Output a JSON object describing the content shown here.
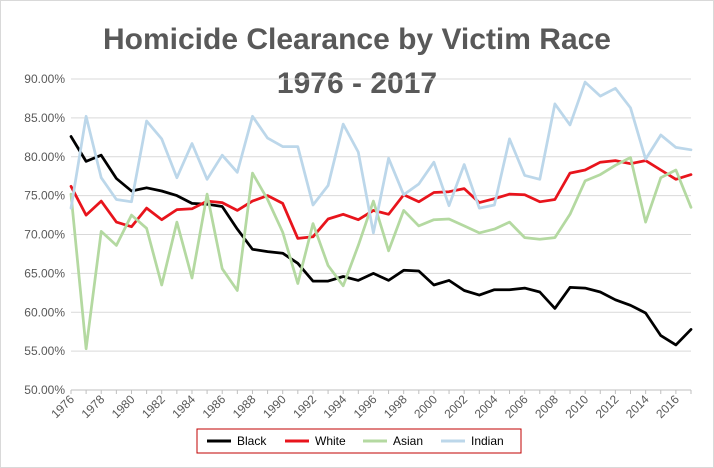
{
  "chart_data": {
    "type": "line",
    "title_line1": "Homicide Clearance by Victim Race",
    "title_line2": "1976 - 2017",
    "xlabel": "",
    "ylabel": "",
    "ylim": [
      0.5,
      0.9
    ],
    "y_ticks": [
      0.5,
      0.55,
      0.6,
      0.65,
      0.7,
      0.75,
      0.8,
      0.85,
      0.9
    ],
    "y_tick_labels": [
      "50.00%",
      "55.00%",
      "60.00%",
      "65.00%",
      "70.00%",
      "75.00%",
      "80.00%",
      "85.00%",
      "90.00%"
    ],
    "x_tick_labels": [
      "1976",
      "1978",
      "1980",
      "1982",
      "1984",
      "1986",
      "1988",
      "1990",
      "1992",
      "1994",
      "1996",
      "1998",
      "2000",
      "2002",
      "2004",
      "2006",
      "2008",
      "2010",
      "2012",
      "2014",
      "2016"
    ],
    "grid": true,
    "legend_position": "bottom",
    "x": [
      1976,
      1977,
      1978,
      1979,
      1980,
      1981,
      1982,
      1983,
      1984,
      1985,
      1986,
      1987,
      1988,
      1989,
      1990,
      1991,
      1992,
      1993,
      1994,
      1995,
      1996,
      1997,
      1998,
      1999,
      2000,
      2001,
      2002,
      2003,
      2004,
      2005,
      2006,
      2007,
      2008,
      2009,
      2010,
      2011,
      2012,
      2013,
      2014,
      2015,
      2016,
      2017
    ],
    "series": [
      {
        "name": "Black",
        "color": "#000000",
        "values": [
          0.826,
          0.794,
          0.802,
          0.772,
          0.756,
          0.76,
          0.756,
          0.75,
          0.74,
          0.739,
          0.736,
          0.707,
          0.681,
          0.678,
          0.676,
          0.663,
          0.64,
          0.64,
          0.646,
          0.641,
          0.65,
          0.641,
          0.654,
          0.653,
          0.635,
          0.641,
          0.628,
          0.622,
          0.629,
          0.629,
          0.631,
          0.626,
          0.605,
          0.632,
          0.631,
          0.626,
          0.616,
          0.609,
          0.599,
          0.57,
          0.558,
          0.578
        ]
      },
      {
        "name": "White",
        "color": "#e8141c",
        "values": [
          0.762,
          0.725,
          0.743,
          0.716,
          0.71,
          0.734,
          0.719,
          0.732,
          0.733,
          0.743,
          0.741,
          0.731,
          0.743,
          0.75,
          0.74,
          0.695,
          0.697,
          0.72,
          0.726,
          0.719,
          0.731,
          0.726,
          0.751,
          0.742,
          0.754,
          0.755,
          0.759,
          0.741,
          0.746,
          0.752,
          0.751,
          0.742,
          0.745,
          0.779,
          0.783,
          0.793,
          0.795,
          0.791,
          0.795,
          0.783,
          0.771,
          0.777
        ]
      },
      {
        "name": "Asian",
        "color": "#b4d9a1",
        "values": [
          0.752,
          0.553,
          0.704,
          0.686,
          0.725,
          0.708,
          0.635,
          0.716,
          0.644,
          0.752,
          0.656,
          0.628,
          0.779,
          0.745,
          0.703,
          0.637,
          0.714,
          0.66,
          0.634,
          0.686,
          0.743,
          0.679,
          0.731,
          0.711,
          0.719,
          0.72,
          0.711,
          0.702,
          0.707,
          0.716,
          0.696,
          0.694,
          0.696,
          0.726,
          0.769,
          0.777,
          0.789,
          0.799,
          0.716,
          0.773,
          0.783,
          0.735
        ]
      },
      {
        "name": "Indian",
        "color": "#bcd7ea",
        "values": [
          0.734,
          0.852,
          0.773,
          0.745,
          0.742,
          0.846,
          0.823,
          0.773,
          0.817,
          0.771,
          0.802,
          0.78,
          0.852,
          0.824,
          0.813,
          0.813,
          0.738,
          0.763,
          0.842,
          0.806,
          0.702,
          0.798,
          0.751,
          0.765,
          0.793,
          0.737,
          0.79,
          0.734,
          0.738,
          0.823,
          0.776,
          0.771,
          0.868,
          0.841,
          0.896,
          0.878,
          0.888,
          0.863,
          0.797,
          0.828,
          0.812,
          0.809
        ]
      }
    ]
  }
}
